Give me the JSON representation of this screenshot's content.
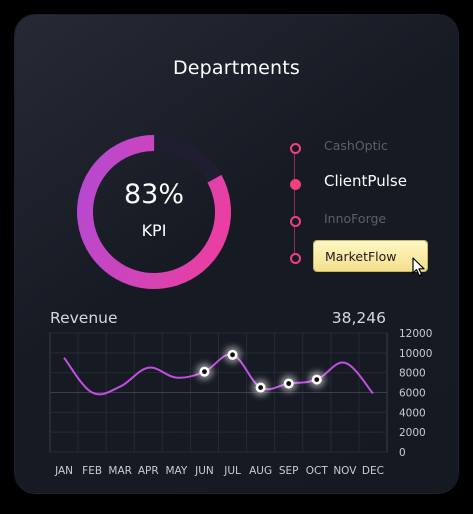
{
  "title": "Departments",
  "kpi": {
    "value": "83%",
    "label": "KPI",
    "fraction": 0.83,
    "colors": {
      "start": "#f23d9a",
      "end": "#b04ad7",
      "track": "#1f1d30"
    }
  },
  "departments": [
    {
      "label": "CashOptic",
      "active": false
    },
    {
      "label": "ClientPulse",
      "active": true
    },
    {
      "label": "InnoForge",
      "active": false
    },
    {
      "label": "MarketFlow",
      "active": false,
      "hovered": true
    }
  ],
  "revenue": {
    "title": "Revenue",
    "total": "38,246"
  },
  "chart_data": {
    "type": "line",
    "categories": [
      "JAN",
      "FEB",
      "MAR",
      "APR",
      "MAY",
      "JUN",
      "JUL",
      "AUG",
      "SEP",
      "OCT",
      "NOV",
      "DEC"
    ],
    "series": [
      {
        "values": [
          9500,
          6000,
          6600,
          8500,
          7500,
          8100,
          9800,
          6500,
          6900,
          7300,
          9000,
          5900
        ],
        "color": "#c04fe0",
        "highlighted": [
          5,
          6,
          7,
          8,
          9
        ]
      }
    ],
    "ylim": [
      0,
      12000
    ],
    "yticks": [
      0,
      2000,
      4000,
      6000,
      8000,
      10000,
      12000
    ],
    "grid": true
  }
}
